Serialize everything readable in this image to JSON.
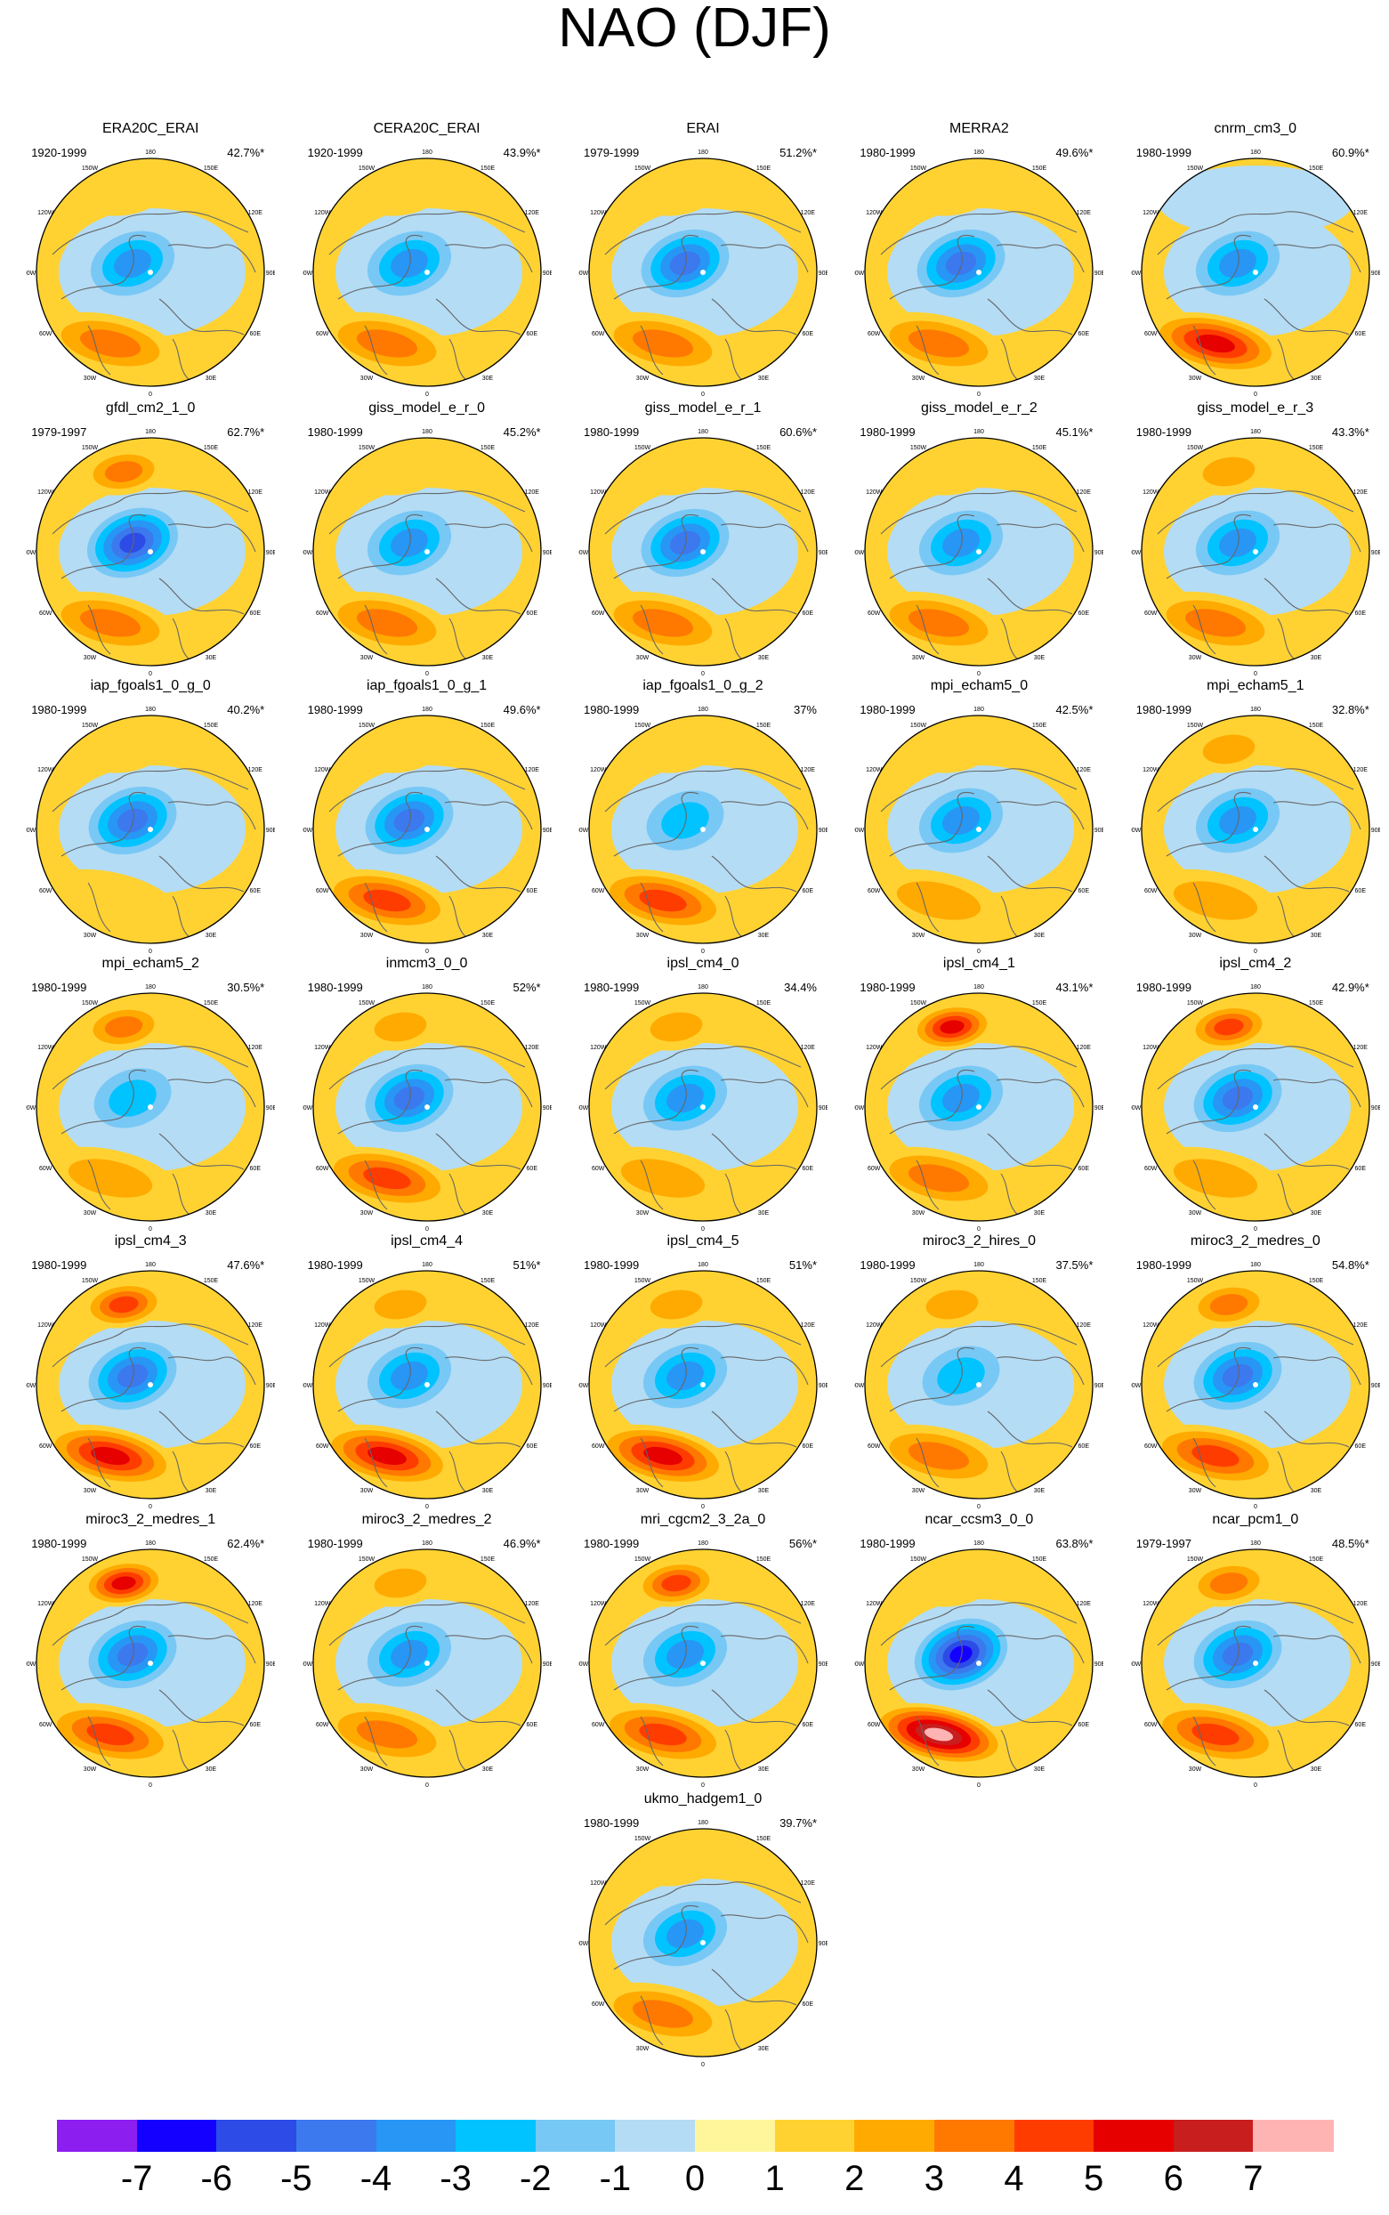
{
  "title": "NAO (DJF)",
  "palette": [
    "#8c1ef0",
    "#1400ff",
    "#2d4be6",
    "#3c78ee",
    "#2896f5",
    "#00c3ff",
    "#78c8f5",
    "#b4dcf5",
    "#fff59b",
    "#ffd232",
    "#ffaa00",
    "#ff7800",
    "#ff3c00",
    "#e60000",
    "#c81e1e",
    "#ffb4b4"
  ],
  "colorbar_labels": [
    "-7",
    "-6",
    "-5",
    "-4",
    "-3",
    "-2",
    "-1",
    "0",
    "1",
    "2",
    "3",
    "4",
    "5",
    "6",
    "7"
  ],
  "lon_labels": [
    "180",
    "150E",
    "120E",
    "90E",
    "60E",
    "30E",
    "0",
    "30W",
    "60W",
    "90W",
    "120W",
    "150W"
  ],
  "panels": [
    {
      "name": "ERA20C_ERAI",
      "period": "1920-1999",
      "pct": "42.7%*",
      "low": -4,
      "high": 3,
      "ridge": 1
    },
    {
      "name": "CERA20C_ERAI",
      "period": "1920-1999",
      "pct": "43.9%*",
      "low": -4,
      "high": 3,
      "ridge": 1
    },
    {
      "name": "ERAI",
      "period": "1979-1999",
      "pct": "51.2%*",
      "low": -5,
      "high": 3,
      "ridge": 1
    },
    {
      "name": "MERRA2",
      "period": "1980-1999",
      "pct": "49.6%*",
      "low": -5,
      "high": 3,
      "ridge": 1
    },
    {
      "name": "cnrm_cm3_0",
      "period": "1980-1999",
      "pct": "60.9%*",
      "low": -4,
      "high": 5,
      "ridge": -1
    },
    {
      "name": "gfdl_cm2_1_0",
      "period": "1979-1997",
      "pct": "62.7%*",
      "low": -6,
      "high": 3,
      "ridge": 3
    },
    {
      "name": "giss_model_e_r_0",
      "period": "1980-1999",
      "pct": "45.2%*",
      "low": -4,
      "high": 3,
      "ridge": 1
    },
    {
      "name": "giss_model_e_r_1",
      "period": "1980-1999",
      "pct": "60.6%*",
      "low": -5,
      "high": 3,
      "ridge": 1
    },
    {
      "name": "giss_model_e_r_2",
      "period": "1980-1999",
      "pct": "45.1%*",
      "low": -4,
      "high": 3,
      "ridge": 1
    },
    {
      "name": "giss_model_e_r_3",
      "period": "1980-1999",
      "pct": "43.3%*",
      "low": -4,
      "high": 3,
      "ridge": 2
    },
    {
      "name": "iap_fgoals1_0_g_0",
      "period": "1980-1999",
      "pct": "40.2%*",
      "low": -5,
      "high": 1,
      "ridge": 1
    },
    {
      "name": "iap_fgoals1_0_g_1",
      "period": "1980-1999",
      "pct": "49.6%*",
      "low": -5,
      "high": 4,
      "ridge": 1
    },
    {
      "name": "iap_fgoals1_0_g_2",
      "period": "1980-1999",
      "pct": "37%",
      "low": -3,
      "high": 4,
      "ridge": 1
    },
    {
      "name": "mpi_echam5_0",
      "period": "1980-1999",
      "pct": "42.5%*",
      "low": -4,
      "high": 2,
      "ridge": 1
    },
    {
      "name": "mpi_echam5_1",
      "period": "1980-1999",
      "pct": "32.8%*",
      "low": -4,
      "high": 2,
      "ridge": 2
    },
    {
      "name": "mpi_echam5_2",
      "period": "1980-1999",
      "pct": "30.5%*",
      "low": -3,
      "high": 2,
      "ridge": 3
    },
    {
      "name": "inmcm3_0_0",
      "period": "1980-1999",
      "pct": "52%*",
      "low": -5,
      "high": 4,
      "ridge": 2
    },
    {
      "name": "ipsl_cm4_0",
      "period": "1980-1999",
      "pct": "34.4%",
      "low": -4,
      "high": 2,
      "ridge": 2
    },
    {
      "name": "ipsl_cm4_1",
      "period": "1980-1999",
      "pct": "43.1%*",
      "low": -4,
      "high": 3,
      "ridge": 5
    },
    {
      "name": "ipsl_cm4_2",
      "period": "1980-1999",
      "pct": "42.9%*",
      "low": -5,
      "high": 2,
      "ridge": 4
    },
    {
      "name": "ipsl_cm4_3",
      "period": "1980-1999",
      "pct": "47.6%*",
      "low": -5,
      "high": 5,
      "ridge": 4
    },
    {
      "name": "ipsl_cm4_4",
      "period": "1980-1999",
      "pct": "51%*",
      "low": -4,
      "high": 5,
      "ridge": 2
    },
    {
      "name": "ipsl_cm4_5",
      "period": "1980-1999",
      "pct": "51%*",
      "low": -4,
      "high": 5,
      "ridge": 2
    },
    {
      "name": "miroc3_2_hires_0",
      "period": "1980-1999",
      "pct": "37.5%*",
      "low": -3,
      "high": 3,
      "ridge": 2
    },
    {
      "name": "miroc3_2_medres_0",
      "period": "1980-1999",
      "pct": "54.8%*",
      "low": -5,
      "high": 4,
      "ridge": 3
    },
    {
      "name": "miroc3_2_medres_1",
      "period": "1980-1999",
      "pct": "62.4%*",
      "low": -5,
      "high": 4,
      "ridge": 5
    },
    {
      "name": "miroc3_2_medres_2",
      "period": "1980-1999",
      "pct": "46.9%*",
      "low": -4,
      "high": 3,
      "ridge": 2
    },
    {
      "name": "mri_cgcm2_3_2a_0",
      "period": "1980-1999",
      "pct": "56%*",
      "low": -4,
      "high": 4,
      "ridge": 4
    },
    {
      "name": "ncar_ccsm3_0_0",
      "period": "1980-1999",
      "pct": "63.8%*",
      "low": -7,
      "high": 7,
      "ridge": 1
    },
    {
      "name": "ncar_pcm1_0",
      "period": "1979-1997",
      "pct": "48.5%*",
      "low": -5,
      "high": 4,
      "ridge": 3
    },
    {
      "name": "ukmo_hadgem1_0",
      "period": "1980-1999",
      "pct": "39.7%*",
      "low": -4,
      "high": 3,
      "ridge": 1
    }
  ]
}
